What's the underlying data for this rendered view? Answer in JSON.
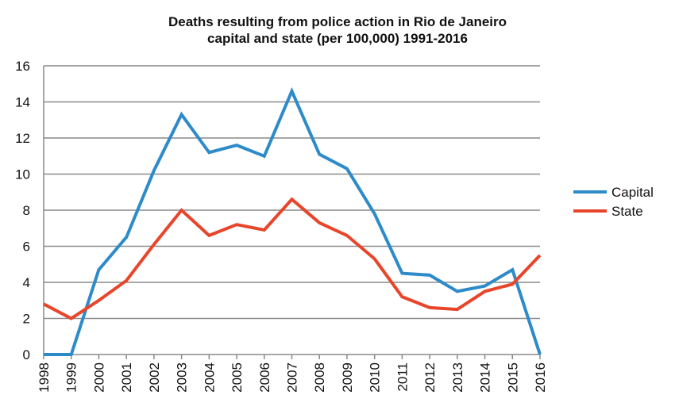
{
  "chart_data": {
    "type": "line",
    "title": "Deaths resulting from police action in Rio de Janeiro",
    "subtitle": "capital and state (per 100,000) 1991-2016",
    "xlabel": "",
    "ylabel": "",
    "categories": [
      "1998",
      "1999",
      "2000",
      "2001",
      "2002",
      "2003",
      "2004",
      "2005",
      "2006",
      "2007",
      "2008",
      "2009",
      "2010",
      "2011",
      "2012",
      "2013",
      "2014",
      "2015",
      "2016"
    ],
    "ylim": [
      0,
      16
    ],
    "yticks": [
      "0",
      "2",
      "4",
      "6",
      "8",
      "10",
      "12",
      "14",
      "16"
    ],
    "grid": true,
    "legend_position": "right",
    "series": [
      {
        "name": "Capital",
        "color": "#2e8bc9",
        "values": [
          0,
          0,
          4.7,
          6.5,
          10.2,
          13.3,
          11.2,
          11.6,
          11.0,
          14.6,
          11.1,
          10.3,
          7.8,
          4.5,
          4.4,
          3.5,
          3.8,
          4.7,
          0
        ]
      },
      {
        "name": "State",
        "color": "#e8452a",
        "values": [
          2.8,
          2.0,
          3.0,
          4.1,
          6.1,
          8.0,
          6.6,
          7.2,
          6.9,
          8.6,
          7.3,
          6.6,
          5.3,
          3.2,
          2.6,
          2.5,
          3.5,
          3.9,
          5.5
        ]
      }
    ]
  }
}
